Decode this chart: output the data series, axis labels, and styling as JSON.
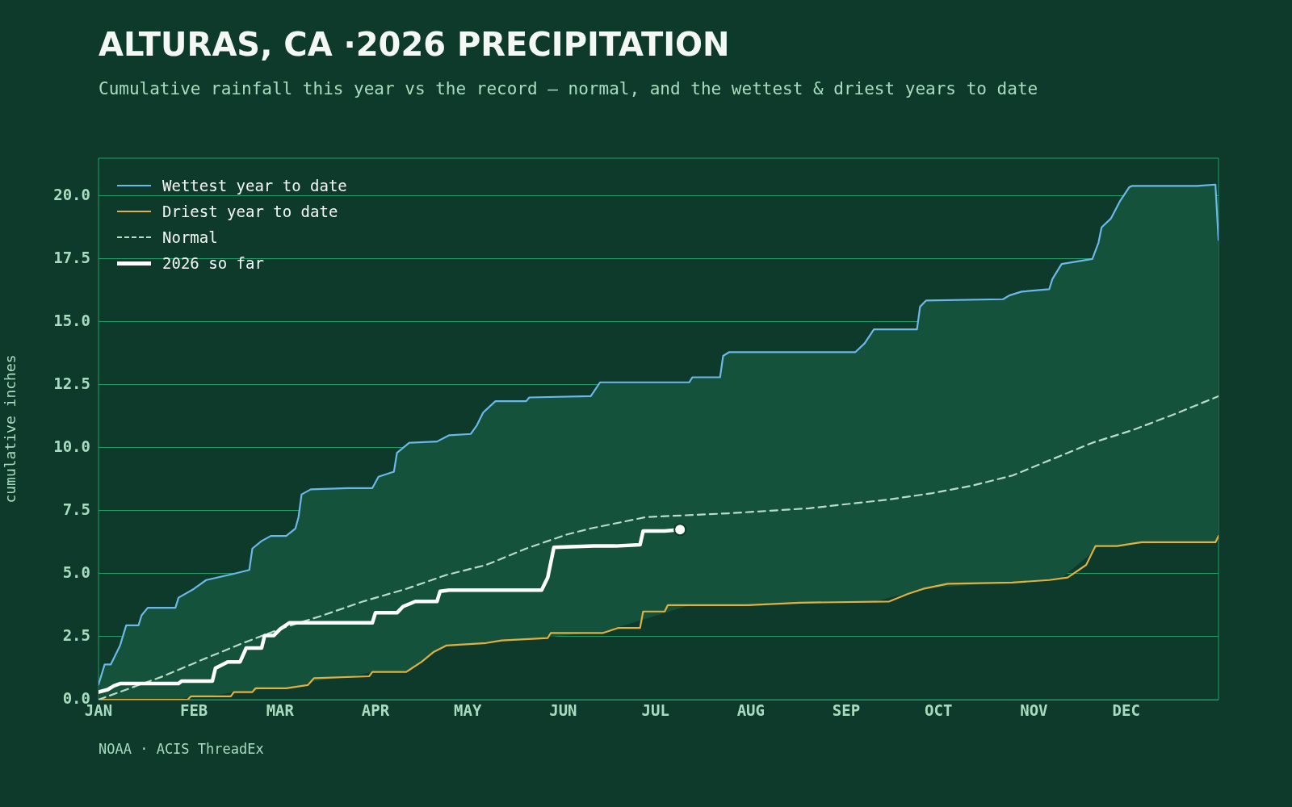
{
  "chart_data": {
    "type": "line",
    "title": "ALTURAS, CA ·2026 PRECIPITATION",
    "subtitle": "Cumulative rainfall this year vs the record — normal, and the wettest & driest years to date",
    "ylabel": "cumulative inches",
    "annotations": [
      "NOAA · ACIS ThreadEx"
    ],
    "xlim": [
      "2026-01-01",
      "2026-12-31"
    ],
    "xticks": [
      {
        "value": "2026-01-01",
        "label": "JAN"
      },
      {
        "value": "2026-02-01",
        "label": "FEB"
      },
      {
        "value": "2026-03-01",
        "label": "MAR"
      },
      {
        "value": "2026-04-01",
        "label": "APR"
      },
      {
        "value": "2026-05-01",
        "label": "MAY"
      },
      {
        "value": "2026-06-01",
        "label": "JUN"
      },
      {
        "value": "2026-07-01",
        "label": "JUL"
      },
      {
        "value": "2026-08-01",
        "label": "AUG"
      },
      {
        "value": "2026-09-01",
        "label": "SEP"
      },
      {
        "value": "2026-10-01",
        "label": "OCT"
      },
      {
        "value": "2026-11-01",
        "label": "NOV"
      },
      {
        "value": "2026-12-01",
        "label": "DEC"
      }
    ],
    "ylim": [
      0,
      21.5
    ],
    "yticks": [
      {
        "value": 0,
        "label": "0.0"
      },
      {
        "value": 2.5,
        "label": "2.5"
      },
      {
        "value": 5,
        "label": "5.0"
      },
      {
        "value": 7.5,
        "label": "7.5"
      },
      {
        "value": 10,
        "label": "10.0"
      },
      {
        "value": 12.5,
        "label": "12.5"
      },
      {
        "value": 15,
        "label": "15.0"
      },
      {
        "value": 17.5,
        "label": "17.5"
      },
      {
        "value": 20,
        "label": "20.0"
      }
    ],
    "grid": "y",
    "legend": "top left",
    "line_style": "solid",
    "series": [
      {
        "name": "Wettest year to date",
        "color": "#6cb8e8",
        "x": [
          "2026-01-01",
          "2026-01-03",
          "2026-01-05",
          "2026-01-08",
          "2026-01-10",
          "2026-01-14",
          "2026-01-15",
          "2026-01-17",
          "2026-01-26",
          "2026-01-27",
          "2026-02-01",
          "2026-02-05",
          "2026-02-14",
          "2026-02-19",
          "2026-02-20",
          "2026-02-23",
          "2026-02-26",
          "2026-03-03",
          "2026-03-06",
          "2026-03-07",
          "2026-03-08",
          "2026-03-11",
          "2026-03-23",
          "2026-03-31",
          "2026-04-02",
          "2026-04-07",
          "2026-04-08",
          "2026-04-12",
          "2026-04-21",
          "2026-04-25",
          "2026-05-02",
          "2026-05-04",
          "2026-05-06",
          "2026-05-10",
          "2026-05-20",
          "2026-05-21",
          "2026-06-10",
          "2026-06-13",
          "2026-07-12",
          "2026-07-13",
          "2026-07-22",
          "2026-07-23",
          "2026-07-25",
          "2026-09-04",
          "2026-09-07",
          "2026-09-10",
          "2026-09-24",
          "2026-09-25",
          "2026-09-27",
          "2026-10-22",
          "2026-10-24",
          "2026-10-28",
          "2026-11-06",
          "2026-11-07",
          "2026-11-10",
          "2026-11-20",
          "2026-11-22",
          "2026-11-23",
          "2026-11-26",
          "2026-11-29",
          "2026-12-02",
          "2026-12-03",
          "2026-12-24",
          "2026-12-30",
          "2026-12-31"
        ],
        "values": [
          0.6,
          1.4,
          1.4,
          2.15,
          2.95,
          2.95,
          3.35,
          3.65,
          3.65,
          4.05,
          4.4,
          4.75,
          5.0,
          5.15,
          6.0,
          6.3,
          6.5,
          6.5,
          6.8,
          7.25,
          8.15,
          8.35,
          8.4,
          8.4,
          8.85,
          9.05,
          9.8,
          10.2,
          10.25,
          10.5,
          10.55,
          10.9,
          11.4,
          11.85,
          11.85,
          12.0,
          12.05,
          12.6,
          12.6,
          12.8,
          12.8,
          13.65,
          13.8,
          13.8,
          14.15,
          14.7,
          14.7,
          15.6,
          15.85,
          15.9,
          16.05,
          16.2,
          16.3,
          16.7,
          17.3,
          17.5,
          18.15,
          18.75,
          19.1,
          19.8,
          20.35,
          20.4,
          20.4,
          20.45,
          18.25
        ],
        "upper": [
          0.6,
          1.4,
          1.4,
          2.15,
          2.95,
          2.95,
          3.35,
          3.65,
          3.65,
          4.05,
          4.4,
          4.75,
          5.0,
          5.15,
          6.0,
          6.3,
          6.5,
          6.5,
          6.8,
          7.25,
          8.15,
          8.35,
          8.4,
          8.4,
          8.85,
          9.05,
          9.8,
          10.2,
          10.25,
          10.5,
          10.55,
          10.9,
          11.4,
          11.85,
          11.85,
          12.0,
          12.05,
          12.6,
          12.6,
          12.8,
          12.8,
          13.65,
          13.8,
          13.8,
          14.15,
          14.7,
          14.7,
          15.6,
          15.85,
          15.9,
          16.05,
          16.2,
          16.3,
          16.7,
          17.3,
          17.5,
          18.15,
          18.75,
          19.1,
          19.8,
          20.35,
          20.4,
          20.4,
          20.45,
          18.25
        ],
        "lower": [
          0,
          0,
          0,
          0,
          0,
          0,
          0,
          0,
          0,
          0,
          0.13,
          0.13,
          0.3,
          0.3,
          0.3,
          0.45,
          0.45,
          0.45,
          0.51,
          0.52,
          0.54,
          0.72,
          0.9,
          1.1,
          1.1,
          1.1,
          1.1,
          1.18,
          1.96,
          2.16,
          2.21,
          2.23,
          2.24,
          2.31,
          2.4,
          2.41,
          2.65,
          2.65,
          3.75,
          3.75,
          3.75,
          3.75,
          3.75,
          3.88,
          3.89,
          3.89,
          4.32,
          4.36,
          4.43,
          4.64,
          4.65,
          4.67,
          4.75,
          4.77,
          4.82,
          5.85,
          6.1,
          6.1,
          6.1,
          6.12,
          6.18,
          6.19,
          6.25,
          6.25,
          6.5
        ]
      },
      {
        "name": "Driest year to date",
        "color": "#e0b040",
        "x": [
          "2026-01-01",
          "2026-01-30",
          "2026-01-31",
          "2026-02-13",
          "2026-02-14",
          "2026-02-20",
          "2026-02-21",
          "2026-03-03",
          "2026-03-10",
          "2026-03-12",
          "2026-03-30",
          "2026-03-31",
          "2026-04-11",
          "2026-04-16",
          "2026-04-20",
          "2026-04-24",
          "2026-05-07",
          "2026-05-12",
          "2026-05-27",
          "2026-05-28",
          "2026-06-14",
          "2026-06-19",
          "2026-06-26",
          "2026-06-27",
          "2026-07-04",
          "2026-07-05",
          "2026-07-31",
          "2026-08-17",
          "2026-09-15",
          "2026-09-21",
          "2026-09-26",
          "2026-10-04",
          "2026-10-25",
          "2026-11-06",
          "2026-11-12",
          "2026-11-18",
          "2026-11-21",
          "2026-11-28",
          "2026-12-06",
          "2026-12-30",
          "2026-12-31"
        ],
        "values": [
          0,
          0,
          0.13,
          0.13,
          0.3,
          0.3,
          0.45,
          0.45,
          0.58,
          0.85,
          0.93,
          1.1,
          1.1,
          1.5,
          1.9,
          2.15,
          2.25,
          2.35,
          2.45,
          2.65,
          2.65,
          2.85,
          2.85,
          3.5,
          3.5,
          3.75,
          3.75,
          3.85,
          3.9,
          4.2,
          4.4,
          4.6,
          4.65,
          4.75,
          4.85,
          5.35,
          6.1,
          6.1,
          6.25,
          6.25,
          6.5
        ]
      },
      {
        "name": "Normal",
        "color": "#b8dcc8",
        "line_style": "dashed",
        "x": [
          "2026-01-01",
          "2026-01-22",
          "2026-02-04",
          "2026-02-17",
          "2026-03-02",
          "2026-03-15",
          "2026-03-28",
          "2026-04-11",
          "2026-04-24",
          "2026-05-07",
          "2026-05-20",
          "2026-06-02",
          "2026-06-10",
          "2026-06-28",
          "2026-07-25",
          "2026-08-20",
          "2026-09-15",
          "2026-09-29",
          "2026-10-12",
          "2026-10-25",
          "2026-11-07",
          "2026-11-20",
          "2026-12-03",
          "2026-12-17",
          "2026-12-31"
        ],
        "values": [
          0,
          0.93,
          1.6,
          2.25,
          2.85,
          3.35,
          3.9,
          4.4,
          4.95,
          5.35,
          6.0,
          6.55,
          6.8,
          7.25,
          7.4,
          7.6,
          7.95,
          8.2,
          8.5,
          8.9,
          9.55,
          10.2,
          10.7,
          11.35,
          12.05
        ]
      },
      {
        "name": "2026 so far",
        "color": "#ffffff",
        "x": [
          "2026-01-01",
          "2026-01-04",
          "2026-01-06",
          "2026-01-08",
          "2026-01-27",
          "2026-01-28",
          "2026-02-07",
          "2026-02-08",
          "2026-02-12",
          "2026-02-16",
          "2026-02-18",
          "2026-02-23",
          "2026-02-24",
          "2026-02-27",
          "2026-03-01",
          "2026-03-04",
          "2026-03-31",
          "2026-04-01",
          "2026-04-08",
          "2026-04-10",
          "2026-04-14",
          "2026-04-21",
          "2026-04-22",
          "2026-04-25",
          "2026-05-25",
          "2026-05-27",
          "2026-05-29",
          "2026-06-11",
          "2026-06-18",
          "2026-06-26",
          "2026-06-27",
          "2026-07-04",
          "2026-07-09"
        ],
        "values": [
          0.3,
          0.4,
          0.55,
          0.64,
          0.64,
          0.74,
          0.74,
          1.25,
          1.5,
          1.5,
          2.05,
          2.05,
          2.55,
          2.55,
          2.8,
          3.05,
          3.05,
          3.45,
          3.45,
          3.7,
          3.9,
          3.9,
          4.3,
          4.35,
          4.35,
          4.85,
          6.05,
          6.1,
          6.1,
          6.15,
          6.7,
          6.7,
          6.75
        ]
      },
      {
        "type": "scatter",
        "color": "#ffffff",
        "marker": "circle",
        "x": [
          "2026-07-09"
        ],
        "values": [
          6.75
        ]
      }
    ]
  }
}
